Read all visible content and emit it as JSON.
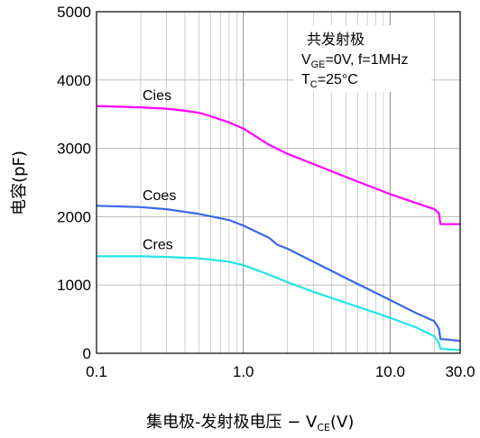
{
  "chart_data": {
    "type": "line",
    "xscale": "log",
    "xlim": [
      0.1,
      30.0
    ],
    "ylim": [
      0,
      5000
    ],
    "x_ticks": [
      0.1,
      1.0,
      10.0,
      30.0
    ],
    "x_tick_labels": [
      "0.1",
      "1.0",
      "10.0",
      "30.0"
    ],
    "y_ticks": [
      0,
      1000,
      2000,
      3000,
      4000,
      5000
    ],
    "y_tick_labels": [
      "0",
      "1000",
      "2000",
      "3000",
      "4000",
      "5000"
    ],
    "ylabel": "电容(pF)",
    "xlabel": {
      "main": "集电极-发射极电压 − V",
      "sub": "CE",
      "unit": "(V)"
    },
    "grid": true,
    "conditions": {
      "line1": "共发射极",
      "line2": {
        "a": "V",
        "a_sub": "GE",
        "b": "=0V, f=1MHz"
      },
      "line3": {
        "a": "T",
        "a_sub": "C",
        "b": "=25°C"
      }
    },
    "series": [
      {
        "name": "Cies",
        "color": "#ff00ff",
        "x": [
          0.1,
          0.2,
          0.3,
          0.4,
          0.5,
          0.6,
          0.8,
          1.0,
          1.5,
          2.0,
          3.0,
          5.0,
          10.0,
          15.0,
          20.0,
          21.5,
          22.0,
          30.0
        ],
        "y": [
          3620,
          3600,
          3580,
          3550,
          3520,
          3470,
          3380,
          3290,
          3050,
          2920,
          2770,
          2580,
          2330,
          2200,
          2110,
          2050,
          1890,
          1890
        ]
      },
      {
        "name": "Coes",
        "color": "#3a67e6",
        "x": [
          0.1,
          0.2,
          0.3,
          0.5,
          0.8,
          1.0,
          1.5,
          1.7,
          2.0,
          3.0,
          5.0,
          10.0,
          15.0,
          20.0,
          21.5,
          22.0,
          25.0,
          30.0
        ],
        "y": [
          2160,
          2140,
          2110,
          2040,
          1950,
          1870,
          1690,
          1590,
          1530,
          1340,
          1100,
          780,
          590,
          470,
          360,
          210,
          200,
          180
        ]
      },
      {
        "name": "Cres",
        "color": "#22e6e6",
        "x": [
          0.1,
          0.2,
          0.3,
          0.5,
          0.8,
          1.0,
          1.5,
          2.0,
          3.0,
          5.0,
          10.0,
          15.0,
          20.0,
          21.5,
          22.0,
          25.0,
          30.0
        ],
        "y": [
          1420,
          1420,
          1410,
          1390,
          1340,
          1290,
          1150,
          1040,
          900,
          740,
          520,
          380,
          250,
          150,
          70,
          55,
          50
        ]
      }
    ]
  }
}
